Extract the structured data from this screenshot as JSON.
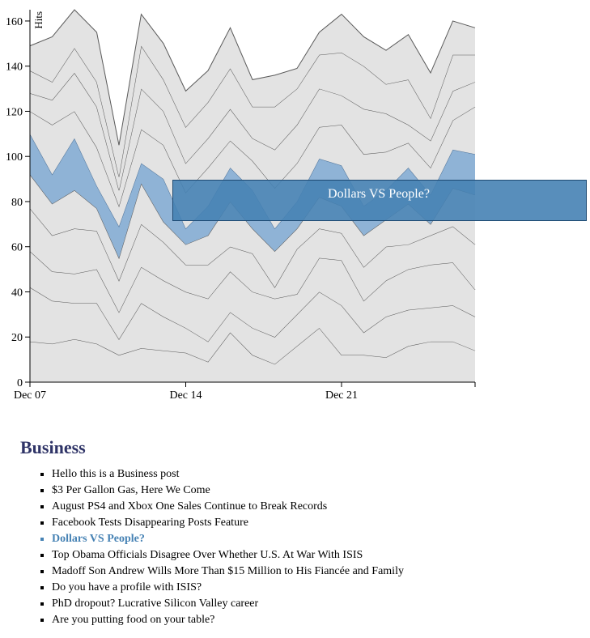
{
  "chart_data": {
    "type": "stacked-area",
    "y_label": "Hits",
    "x": [
      "Dec 07",
      "Dec 08",
      "Dec 09",
      "Dec 10",
      "Dec 11",
      "Dec 12",
      "Dec 13",
      "Dec 14",
      "Dec 15",
      "Dec 16",
      "Dec 17",
      "Dec 18",
      "Dec 19",
      "Dec 20",
      "Dec 21",
      "Dec 22",
      "Dec 23",
      "Dec 24",
      "Dec 25",
      "Dec 26",
      "Dec 27"
    ],
    "xticks": [
      "Dec 07",
      "Dec 14",
      "Dec 21"
    ],
    "ylim": [
      0,
      165
    ],
    "yticks": [
      0,
      20,
      40,
      60,
      80,
      100,
      120,
      140,
      160
    ],
    "series": [
      {
        "name": "Are you putting food on your table?",
        "color": "#e3e3e3",
        "values": [
          18,
          17,
          19,
          17,
          12,
          15,
          14,
          13,
          9,
          22,
          12,
          8,
          16,
          24,
          12,
          12,
          11,
          16,
          18,
          18,
          14
        ]
      },
      {
        "name": "PhD dropout? Lucrative Silicon Valley career",
        "color": "#e3e3e3",
        "values": [
          24,
          19,
          16,
          18,
          7,
          20,
          15,
          11,
          9,
          9,
          12,
          12,
          14,
          16,
          22,
          10,
          18,
          16,
          15,
          16,
          15
        ]
      },
      {
        "name": "Do you have a profile with ISIS?",
        "color": "#e3e3e3",
        "values": [
          16,
          13,
          13,
          15,
          12,
          16,
          16,
          16,
          19,
          18,
          16,
          17,
          9,
          15,
          20,
          14,
          16,
          18,
          19,
          19,
          12
        ]
      },
      {
        "name": "Madoff Son Andrew Wills More Than $15 Million to His Fiancée and Family",
        "color": "#e3e3e3",
        "values": [
          19,
          16,
          20,
          17,
          14,
          19,
          17,
          12,
          15,
          11,
          17,
          5,
          20,
          13,
          12,
          15,
          15,
          11,
          13,
          16,
          20
        ]
      },
      {
        "name": "Top Obama Officials Disagree Over Whether U.S. At War With ISIS",
        "color": "#e3e3e3",
        "values": [
          15,
          14,
          17,
          10,
          10,
          18,
          9,
          9,
          13,
          20,
          11,
          16,
          9,
          14,
          12,
          14,
          12,
          18,
          5,
          17,
          22
        ]
      },
      {
        "name": "Dollars VS People?",
        "color": "#8fb3d6",
        "highlighted": true,
        "values": [
          18,
          13,
          23,
          10,
          14,
          9,
          19,
          7,
          13,
          15,
          17,
          10,
          12,
          17,
          18,
          13,
          13,
          16,
          13,
          17,
          18
        ]
      },
      {
        "name": "Facebook Tests Disappearing Posts Feature",
        "color": "#e3e3e3",
        "values": [
          10,
          22,
          12,
          17,
          9,
          15,
          15,
          16,
          17,
          12,
          13,
          18,
          17,
          14,
          18,
          23,
          17,
          11,
          12,
          13,
          21
        ]
      },
      {
        "name": "August PS4 and Xbox One Sales Continue to Break Records",
        "color": "#e3e3e3",
        "values": [
          8,
          11,
          17,
          18,
          7,
          18,
          15,
          13,
          13,
          14,
          10,
          17,
          17,
          17,
          13,
          20,
          17,
          8,
          12,
          13,
          11
        ]
      },
      {
        "name": "$3 Per Gallon Gas, Here We Come",
        "color": "#e3e3e3",
        "values": [
          10,
          8,
          11,
          11,
          6,
          19,
          14,
          16,
          16,
          18,
          14,
          19,
          16,
          15,
          19,
          19,
          13,
          20,
          10,
          16,
          12
        ]
      },
      {
        "name": "Hello this is a Business post",
        "color": "#e3e3e3",
        "values": [
          11,
          20,
          17,
          22,
          14,
          14,
          16,
          16,
          14,
          18,
          12,
          14,
          9,
          10,
          17,
          13,
          15,
          20,
          20,
          15,
          12
        ]
      }
    ]
  },
  "section": {
    "title": "Business"
  }
}
